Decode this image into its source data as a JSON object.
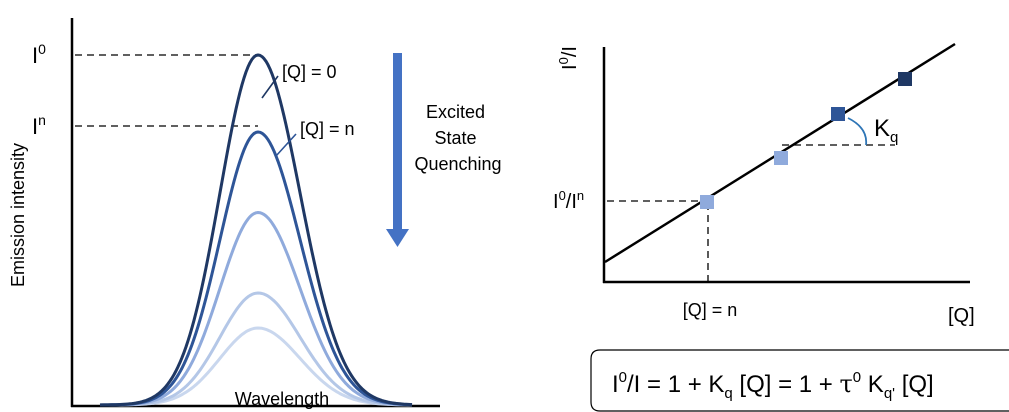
{
  "left_panel": {
    "y_axis_label": "Emission intensity",
    "x_axis_label": "Wavelength",
    "level_i0_base": "I",
    "level_i0_sup": "0",
    "level_in_base": "I",
    "level_in_sup": "n",
    "curve_q0_label": "[Q] = 0",
    "curve_qn_label": "[Q] = n",
    "arrow_label_line1": "Excited",
    "arrow_label_line2": "State",
    "arrow_label_line3": "Quenching",
    "curve_peaks_relative": [
      1.0,
      0.78,
      0.55,
      0.32,
      0.22
    ],
    "curve_colors": [
      "#1f3864",
      "#2e5597",
      "#8faadc",
      "#b4c7e7",
      "#c9d7ee"
    ],
    "arrow_color": "#4472c4"
  },
  "right_panel": {
    "y_axis_label_base": "I",
    "y_axis_label_sup": "0",
    "y_axis_label_tail": "/I",
    "x_axis_label": "[Q]",
    "ratio_base1": "I",
    "ratio_sup1": "0",
    "ratio_mid": "/I",
    "ratio_sup2": "n",
    "q_marker_label": "[Q] = n",
    "slope_base": "K",
    "slope_sub": "q",
    "point_colors": [
      "#8faadc",
      "#8faadc",
      "#2e5597",
      "#1f3864"
    ],
    "line_color": "#000000"
  },
  "equation": {
    "p1": "I",
    "p1_sup": "0",
    "p2": "/I = 1 + K",
    "p2_sub": "q",
    "p3": " [Q] = 1 + ",
    "tau": "τ",
    "tau_sup": "0",
    "p4": " K",
    "p4_sub": "q'",
    "p5": " [Q]"
  }
}
